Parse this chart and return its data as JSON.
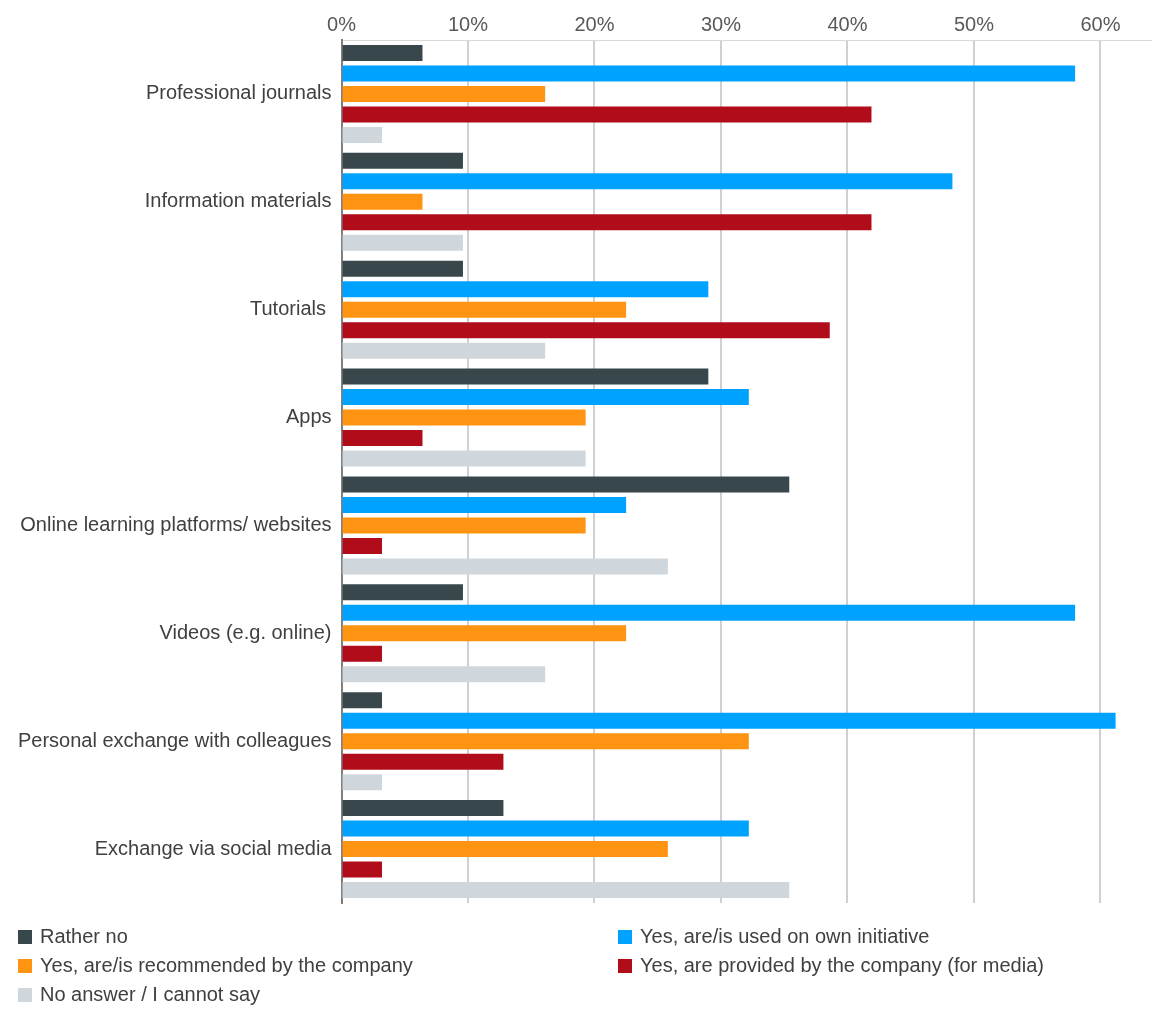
{
  "chart_data": {
    "type": "bar",
    "orientation": "horizontal",
    "categories": [
      "Professional journals",
      "Information materials",
      "Tutorials ",
      "Apps",
      "Online learning platforms/ websites",
      "Videos (e.g. online)",
      "Personal exchange with colleagues",
      "Exchange via social media"
    ],
    "series": [
      {
        "name": "Rather no",
        "color": "#37474b",
        "values": [
          6.4,
          9.6,
          9.6,
          29.0,
          35.4,
          9.6,
          3.2,
          12.8
        ]
      },
      {
        "name": "Yes, are/is used on own initiative",
        "color": "#00a2ff",
        "values": [
          58.0,
          48.3,
          29.0,
          32.2,
          22.5,
          58.0,
          61.2,
          32.2
        ]
      },
      {
        "name": "Yes, are/is recommended by the company",
        "color": "#ff9312",
        "values": [
          16.1,
          6.4,
          22.5,
          19.3,
          19.3,
          22.5,
          32.2,
          25.8
        ]
      },
      {
        "name": "Yes, are provided by the company (for media)",
        "color": "#b10c1a",
        "values": [
          41.9,
          41.9,
          38.6,
          6.4,
          3.2,
          3.2,
          12.8,
          3.2
        ]
      },
      {
        "name": "No answer / I cannot say",
        "color": "#cfd7dc",
        "values": [
          3.2,
          9.6,
          16.1,
          19.3,
          25.8,
          16.1,
          3.2,
          35.4
        ]
      }
    ],
    "xlim": [
      0,
      64
    ],
    "xticks": [
      {
        "value": 0,
        "label": "0%"
      },
      {
        "value": 10,
        "label": "10%"
      },
      {
        "value": 20,
        "label": "20%"
      },
      {
        "value": 30,
        "label": "30%"
      },
      {
        "value": 40,
        "label": "40%"
      },
      {
        "value": 50,
        "label": "50%"
      },
      {
        "value": 60,
        "label": "60%"
      }
    ],
    "grid": "x",
    "legend": "bottom"
  }
}
